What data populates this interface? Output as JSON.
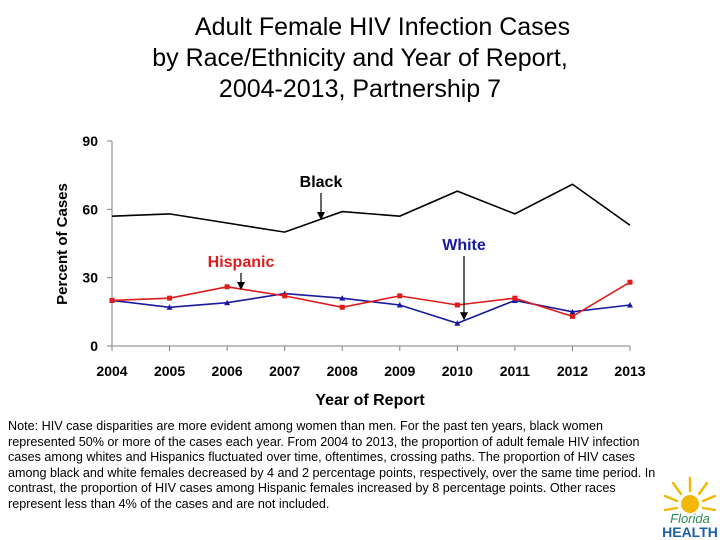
{
  "title": {
    "line1": "Adult Female HIV Infection Cases",
    "line2": "by Race/Ethnicity and Year of Report,",
    "line3": "2004-2013, Partnership 7"
  },
  "chart_data": {
    "type": "line",
    "title": "Adult Female HIV Infection Cases by Race/Ethnicity and Year of Report, 2004-2013, Partnership 7",
    "xlabel": "Year of Report",
    "ylabel": "Percent of Cases",
    "categories": [
      "2004",
      "2005",
      "2006",
      "2007",
      "2008",
      "2009",
      "2010",
      "2011",
      "2012",
      "2013"
    ],
    "ylim": [
      0,
      90
    ],
    "yticks": [
      0,
      30,
      60,
      90
    ],
    "grid": false,
    "series": [
      {
        "name": "Black",
        "color": "#000000",
        "marker": "none",
        "values": [
          57,
          58,
          54,
          50,
          59,
          57,
          68,
          58,
          71,
          53
        ]
      },
      {
        "name": "White",
        "color": "#1a1aa0",
        "marker": "triangle",
        "values": [
          20,
          17,
          19,
          23,
          21,
          18,
          10,
          20,
          15,
          18
        ]
      },
      {
        "name": "Hispanic",
        "color": "#dd1c1c",
        "marker": "square",
        "values": [
          20,
          21,
          26,
          22,
          17,
          22,
          18,
          21,
          13,
          28
        ]
      }
    ],
    "annotations": [
      {
        "text": "Black",
        "series": "Black",
        "points_to": "2008"
      },
      {
        "text": "White",
        "series": "White",
        "points_to": "2010"
      },
      {
        "text": "Hispanic",
        "series": "Hispanic",
        "points_to": "2006"
      }
    ]
  },
  "note": "Note:  HIV case disparities are more evident among women than men.  For the past ten years, black women represented 50% or more of the cases each year. From 2004 to 2013, the proportion of adult female HIV infection cases among whites and Hispanics fluctuated over time, oftentimes, crossing paths.  The proportion of HIV cases among black and white females decreased by 4 and 2 percentage points, respectively, over the same time period. In contrast, the proportion of HIV cases among Hispanic females increased by 8 percentage points.  Other races represent less than 4% of the cases and are not included.",
  "logo": {
    "line1": "Florida",
    "line2": "HEALTH"
  },
  "colors": {
    "axis": "#808080",
    "black": "#000000",
    "white": "#1a1aa0",
    "hispanic": "#dd1c1c",
    "logo_green": "#2e8b57",
    "logo_blue": "#1f5fa8",
    "logo_sun": "#f2b705"
  }
}
